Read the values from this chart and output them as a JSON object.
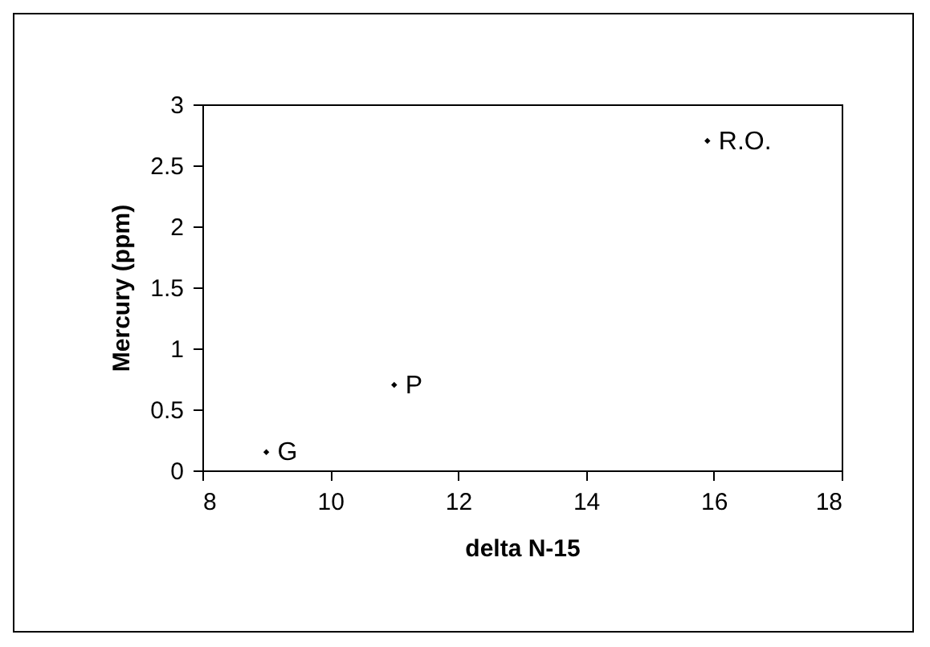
{
  "chart_data": {
    "type": "scatter",
    "xlabel": "delta N-15",
    "ylabel": "Mercury (ppm)",
    "x": [
      9.0,
      11.0,
      15.9
    ],
    "series": [
      {
        "color": "#000000",
        "values": [
          0.15,
          0.7,
          2.7
        ]
      }
    ],
    "annotations": [
      {
        "text": "G",
        "x": 9.0,
        "y": 0.15
      },
      {
        "text": "P",
        "x": 11.0,
        "y": 0.7
      },
      {
        "text": "R.O.",
        "x": 15.9,
        "y": 2.7
      }
    ],
    "xlim": [
      8,
      18
    ],
    "xticks": [
      8,
      10,
      12,
      14,
      16,
      18
    ],
    "ylim": [
      0,
      3
    ],
    "yticks": [
      0,
      0.5,
      1,
      1.5,
      2,
      2.5,
      3
    ],
    "grid": false,
    "legend": false,
    "marker": "diamond"
  }
}
